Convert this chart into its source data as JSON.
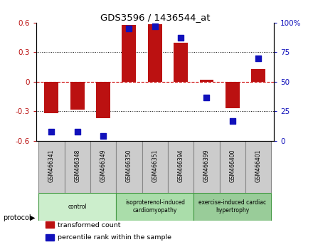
{
  "title": "GDS3596 / 1436544_at",
  "samples": [
    "GSM466341",
    "GSM466348",
    "GSM466349",
    "GSM466350",
    "GSM466351",
    "GSM466394",
    "GSM466399",
    "GSM466400",
    "GSM466401"
  ],
  "bar_values": [
    -0.32,
    -0.285,
    -0.37,
    0.575,
    0.585,
    0.4,
    0.02,
    -0.265,
    0.13
  ],
  "dot_values": [
    8,
    8,
    4,
    95,
    97,
    87,
    37,
    17,
    70
  ],
  "bar_color": "#BB1111",
  "dot_color": "#1111BB",
  "ylim_left": [
    -0.6,
    0.6
  ],
  "ylim_right": [
    0,
    100
  ],
  "yticks_left": [
    -0.6,
    -0.3,
    0,
    0.3,
    0.6
  ],
  "yticks_right": [
    0,
    25,
    50,
    75,
    100
  ],
  "ytick_labels_left": [
    "-0.6",
    "-0.3",
    "0",
    "0.3",
    "0.6"
  ],
  "ytick_labels_right": [
    "0",
    "25",
    "50",
    "75",
    "100%"
  ],
  "groups": [
    {
      "label": "control",
      "start": 0,
      "end": 3,
      "color": "#CCEECC"
    },
    {
      "label": "isoproterenol-induced\ncardiomyopathy",
      "start": 3,
      "end": 6,
      "color": "#AADDAA"
    },
    {
      "label": "exercise-induced cardiac\nhypertrophy",
      "start": 6,
      "end": 9,
      "color": "#99CC99"
    }
  ],
  "protocol_label": "protocol",
  "legend_items": [
    {
      "label": "transformed count",
      "color": "#BB1111"
    },
    {
      "label": "percentile rank within the sample",
      "color": "#1111BB"
    }
  ],
  "background_color": "#FFFFFF",
  "plot_bg": "#FFFFFF",
  "bar_width": 0.55,
  "dot_size": 28,
  "zero_line_color": "#CC0000",
  "sample_bg": "#CCCCCC",
  "sample_border": "#888888"
}
